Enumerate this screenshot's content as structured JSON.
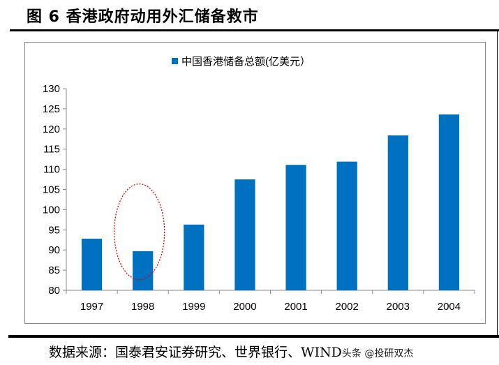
{
  "title": "图 6 香港政府动用外汇储备救市",
  "source": "数据来源：国泰君安证券研究、世界银行、WIND",
  "watermark": "头条 @投研双杰",
  "chart_data": {
    "type": "bar",
    "categories": [
      "1997",
      "1998",
      "1999",
      "2000",
      "2001",
      "2002",
      "2003",
      "2004"
    ],
    "series": [
      {
        "name": "中国香港储备总额(亿美元）",
        "values": [
          92.8,
          89.7,
          96.3,
          107.5,
          111.1,
          111.9,
          118.4,
          123.6
        ],
        "color": "#0070C0"
      }
    ],
    "ylim": [
      80,
      130
    ],
    "yticks": [
      80,
      85,
      90,
      95,
      100,
      105,
      110,
      115,
      120,
      125,
      130
    ],
    "legend": "top-center",
    "grid": false,
    "annotation": {
      "type": "red-dotted-ellipse",
      "category": "1998",
      "color": "#E00000"
    }
  }
}
